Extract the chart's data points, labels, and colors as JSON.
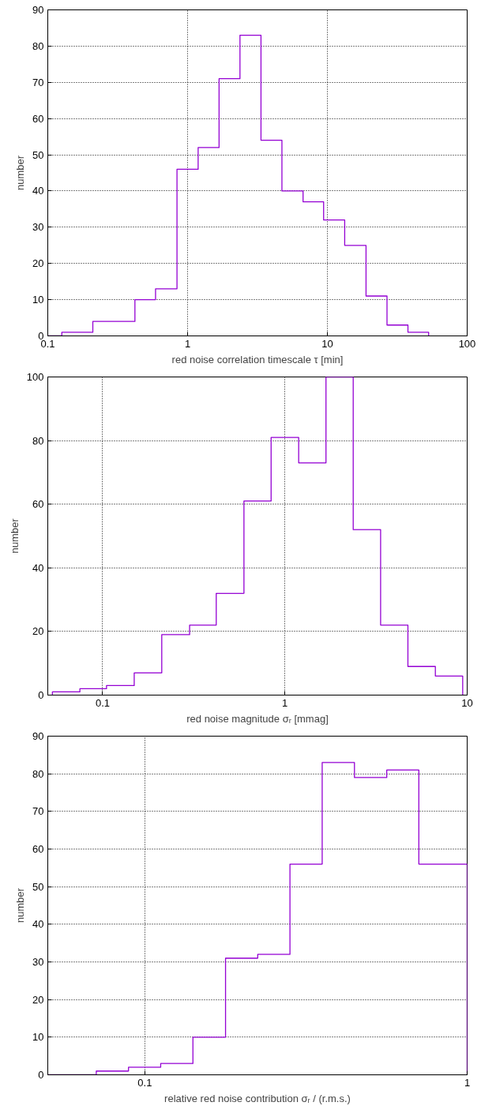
{
  "chart_data": [
    {
      "type": "histogram",
      "xlabel": "red noise correlation timescale τ [min]",
      "ylabel": "number",
      "log": "x",
      "grid": true,
      "color": "#9400d3",
      "bins": [
        0.1,
        0.126,
        0.21,
        0.42,
        0.59,
        0.84,
        1.19,
        1.68,
        2.37,
        3.35,
        4.73,
        6.7,
        9.4,
        13.3,
        18.9,
        26.7,
        37.7,
        53
      ],
      "values": [
        0,
        1,
        4,
        10,
        13,
        46,
        52,
        71,
        83,
        54,
        40,
        37,
        32,
        25,
        11,
        3,
        1
      ],
      "xlim": [
        0.1,
        100
      ],
      "xticks": [
        0.1,
        1,
        10,
        100
      ],
      "ylim": [
        0,
        90
      ],
      "yticks": [
        0,
        10,
        20,
        30,
        40,
        50,
        60,
        70,
        80,
        90
      ]
    },
    {
      "type": "histogram",
      "xlabel": "red noise magnitude σᵣ [mmag]",
      "ylabel": "number",
      "log": "x",
      "grid": true,
      "color": "#9400d3",
      "bins": [
        0.053,
        0.075,
        0.105,
        0.149,
        0.211,
        0.3,
        0.42,
        0.596,
        0.84,
        1.19,
        1.68,
        2.37,
        3.35,
        4.73,
        6.69,
        9.45
      ],
      "values": [
        1,
        2,
        3,
        7,
        19,
        22,
        32,
        61,
        81,
        73,
        100,
        52,
        22,
        9,
        6
      ],
      "xlim": [
        0.05,
        10
      ],
      "xticks": [
        0.1,
        1,
        10
      ],
      "ylim": [
        0,
        100
      ],
      "yticks": [
        0,
        20,
        40,
        60,
        80,
        100
      ]
    },
    {
      "type": "histogram",
      "xlabel": "relative red noise contribution σᵣ / (r.m.s.)",
      "ylabel": "number",
      "log": "x",
      "grid": true,
      "color": "#9400d3",
      "bins": [
        0.05,
        0.0707,
        0.089,
        0.112,
        0.141,
        0.178,
        0.224,
        0.282,
        0.355,
        0.447,
        0.563,
        0.708,
        1
      ],
      "values": [
        0,
        1,
        2,
        3,
        10,
        31,
        32,
        56,
        83,
        79,
        81,
        56
      ],
      "xlim": [
        0.05,
        1
      ],
      "xticks": [
        0.1,
        1
      ],
      "ylim": [
        0,
        90
      ],
      "yticks": [
        0,
        10,
        20,
        30,
        40,
        50,
        60,
        70,
        80,
        90
      ]
    }
  ]
}
